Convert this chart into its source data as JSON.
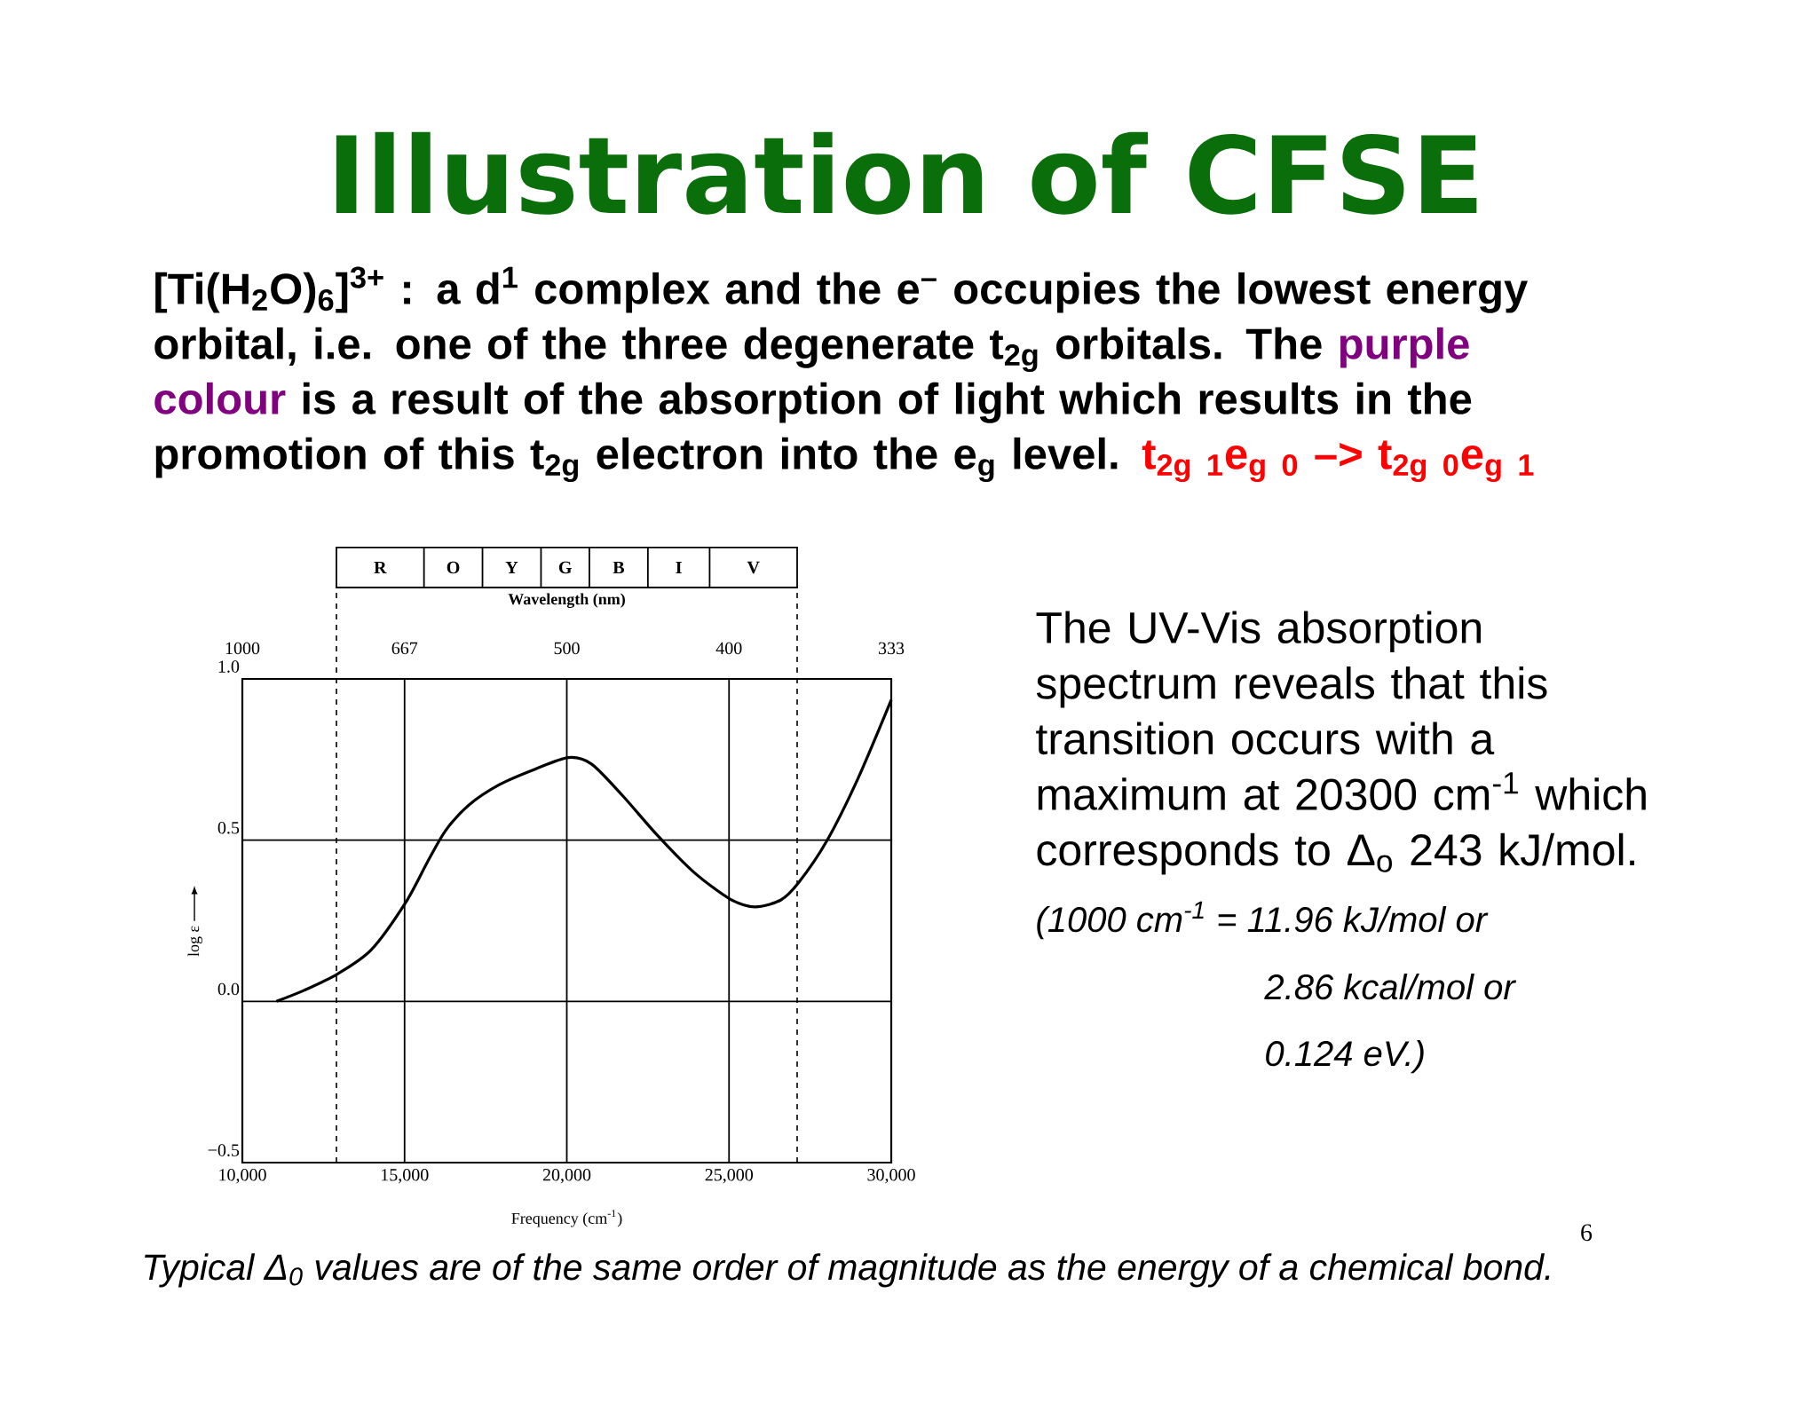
{
  "chart_data": {
    "type": "line",
    "title": "Illustration of CFSE",
    "xlabel": "Frequency (cm$^{-1}$)",
    "ylabel": "log ε",
    "x": [
      11050,
      11920,
      12950,
      13975,
      15030,
      15710,
      16260,
      16970,
      17920,
      19020,
      20050,
      20760,
      21700,
      22810,
      23910,
      25020,
      25800,
      26590,
      27150,
      28010,
      28960,
      30000
    ],
    "series": [
      {
        "color": "#000000",
        "values": [
          0.0,
          0.035,
          0.086,
          0.16,
          0.306,
          0.433,
          0.529,
          0.608,
          0.672,
          0.72,
          0.756,
          0.736,
          0.64,
          0.513,
          0.401,
          0.318,
          0.293,
          0.314,
          0.369,
          0.497,
          0.688,
          0.935
        ]
      }
    ],
    "xlim": [
      10000,
      30000
    ],
    "xticks": [
      {
        "value": 10000,
        "label": "10,000"
      },
      {
        "value": 15000,
        "label": "15,000"
      },
      {
        "value": 20000,
        "label": "20,000"
      },
      {
        "value": 25000,
        "label": "25,000"
      },
      {
        "value": 30000,
        "label": "30,000"
      }
    ],
    "ylim": [
      -0.5,
      1.0
    ],
    "yticks": [
      {
        "value": -0.5,
        "label": "−0.5"
      },
      {
        "value": 0,
        "label": "0.0"
      },
      {
        "value": 0.5,
        "label": "0.5"
      },
      {
        "value": 1.0,
        "label": "1.0"
      }
    ],
    "ref_lines": [
      {
        "axis": "x",
        "value": 12900,
        "line_style": "dashed"
      },
      {
        "axis": "x",
        "value": 27100,
        "line_style": "dashed"
      }
    ],
    "grid": true,
    "marker": "none",
    "line_style": "solid",
    "annotations": [
      "[Ti(H$_{2}$O)$_{6}$]$^{3+}$ : a d$^{1}$ complex and the e$^{–}$ occupies the lowest energy orbital, i.e. one of the three degenerate t$_{2g}$ orbitals. The",
      "purple colour",
      "is a result of the absorption of light which results in the promotion of this t$_{2g}$ electron into the e$_{g}$ level.",
      "t$_{2g 1}$e$_{g 0}$ –> t$_{2g 0}$e$_{g 1}$",
      "The UV-Vis absorption spectrum reveals that this transition occurs with a maximum at 20300 cm$^{-1}$ which corresponds to Δ$_{o}$ 243 kJ/mol.",
      "(1000 cm$^{-1}$ = 11.96 kJ/mol or",
      "2.86 kcal/mol or",
      "0.124 eV.)",
      "Typical Δ$_{0}$ values are of the same order of magnitude as the energy of a chemical bond.",
      "6",
      "Wavelength (nm)",
      "1000",
      "667",
      "500",
      "400",
      "333",
      "R",
      "O",
      "Y",
      "G",
      "B",
      "I",
      "V"
    ]
  }
}
